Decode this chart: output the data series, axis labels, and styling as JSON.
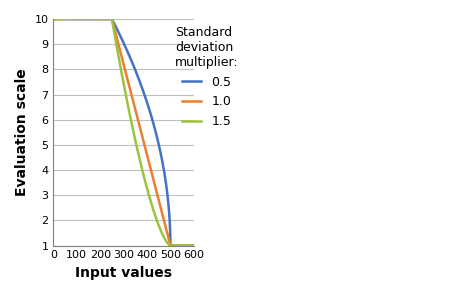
{
  "title": "",
  "xlabel": "Input values",
  "ylabel": "Evaluation scale",
  "xlim": [
    0,
    600
  ],
  "ylim": [
    1,
    10
  ],
  "xticks": [
    0,
    100,
    200,
    300,
    400,
    500,
    600
  ],
  "yticks": [
    1,
    2,
    3,
    4,
    5,
    6,
    7,
    8,
    9,
    10
  ],
  "mean": 250,
  "max_val": 500,
  "multipliers": [
    0.5,
    1.0,
    1.5
  ],
  "colors": [
    "#4472c4",
    "#ed7d31",
    "#9dc33a"
  ],
  "labels": [
    "0.5",
    "1.0",
    "1.5"
  ],
  "legend_title": "Standard\ndeviation\nmultiplier:",
  "background_color": "#ffffff",
  "grid_color": "#c0c0c0",
  "line_width": 1.8,
  "base_sigma": 83.0
}
